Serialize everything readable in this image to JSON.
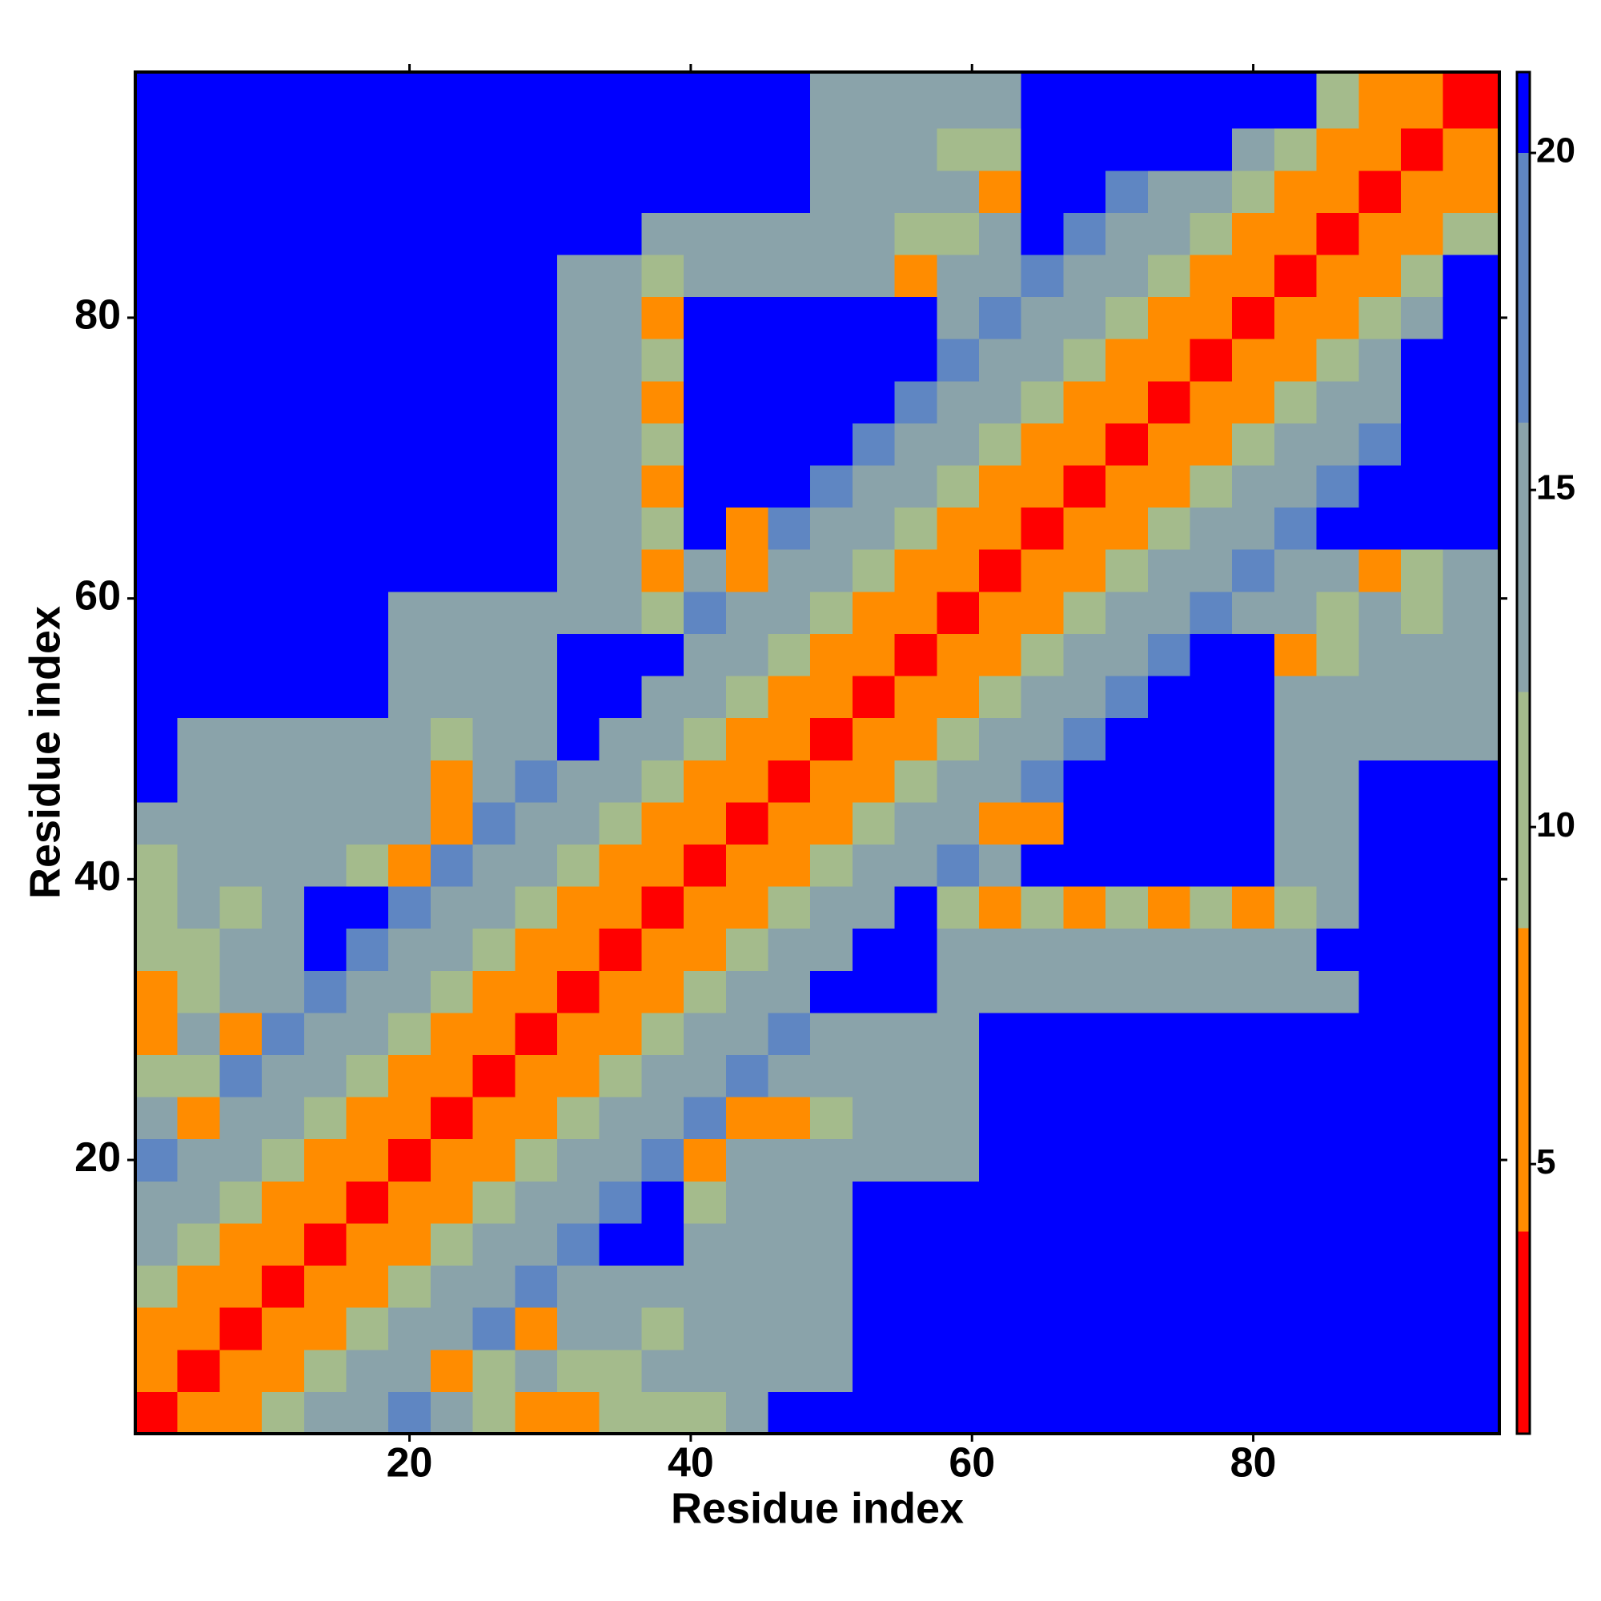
{
  "chart_data": {
    "type": "heatmap",
    "xlabel": "Residue index",
    "ylabel": "Residue index",
    "xlim": [
      0.5,
      97.5
    ],
    "ylim": [
      0.5,
      97.5
    ],
    "xticks": [
      20,
      40,
      60,
      80
    ],
    "yticks": [
      20,
      40,
      60,
      80
    ],
    "xbins": [
      0.5,
      3.5,
      6.5,
      9.5,
      12.5,
      15.5,
      18.5,
      21.5,
      24.5,
      27.5,
      30.5,
      33.5,
      36.5,
      39.5,
      42.5,
      45.5,
      48.5,
      51.5,
      54.5,
      57.5,
      60.5,
      63.5,
      66.5,
      69.5,
      72.5,
      75.5,
      78.5,
      81.5,
      84.5,
      87.5,
      90.5,
      93.5,
      97.5
    ],
    "ybins": [
      0.5,
      3.5,
      6.5,
      9.5,
      12.5,
      15.5,
      18.5,
      21.5,
      24.5,
      27.5,
      30.5,
      33.5,
      36.5,
      39.5,
      42.5,
      45.5,
      48.5,
      51.5,
      54.5,
      57.5,
      60.5,
      63.5,
      66.5,
      69.5,
      72.5,
      75.5,
      78.5,
      81.5,
      84.5,
      87.5,
      90.5,
      93.5,
      97.5
    ],
    "zlim": [
      1,
      21.2
    ],
    "zticks": [
      5,
      10,
      15,
      20
    ],
    "color_bounds": [
      4,
      8.5,
      12,
      16,
      20
    ],
    "colors": [
      "#ff0000",
      "#ff8c00",
      "#a4bb8c",
      "#8aa3aa",
      "#5f86c2",
      "#0000ff"
    ],
    "z": [
      [
        2,
        5,
        8,
        10,
        12,
        14,
        16,
        15,
        11,
        7,
        7,
        11,
        9,
        11,
        15,
        22,
        22,
        22,
        22,
        22,
        22,
        22,
        22,
        22,
        22,
        22,
        22,
        22,
        22,
        22,
        22,
        22
      ],
      [
        5,
        2,
        5,
        8,
        10,
        12,
        14,
        7,
        9,
        15,
        9,
        11,
        15,
        15,
        15,
        15,
        15,
        22,
        22,
        22,
        22,
        22,
        22,
        22,
        22,
        22,
        22,
        22,
        22,
        22,
        22,
        22
      ],
      [
        8,
        5,
        2,
        5,
        8,
        10,
        12,
        14,
        16,
        7,
        15,
        15,
        11,
        15,
        15,
        15,
        15,
        22,
        22,
        22,
        22,
        22,
        22,
        22,
        22,
        22,
        22,
        22,
        22,
        22,
        22,
        22
      ],
      [
        10,
        8,
        5,
        2,
        5,
        8,
        10,
        12,
        14,
        16,
        15,
        15,
        15,
        15,
        15,
        15,
        15,
        22,
        22,
        22,
        22,
        22,
        22,
        22,
        22,
        22,
        22,
        22,
        22,
        22,
        22,
        22
      ],
      [
        12,
        10,
        8,
        5,
        2,
        5,
        8,
        10,
        12,
        14,
        16,
        22,
        22,
        15,
        15,
        15,
        15,
        22,
        22,
        22,
        22,
        22,
        22,
        22,
        22,
        22,
        22,
        22,
        22,
        22,
        22,
        22
      ],
      [
        14,
        12,
        10,
        8,
        5,
        2,
        5,
        8,
        10,
        12,
        14,
        16,
        22,
        11,
        15,
        15,
        15,
        22,
        22,
        22,
        22,
        22,
        22,
        22,
        22,
        22,
        22,
        22,
        22,
        22,
        22,
        22
      ],
      [
        16,
        14,
        12,
        10,
        8,
        5,
        2,
        5,
        8,
        10,
        12,
        14,
        16,
        7,
        15,
        15,
        15,
        15,
        15,
        15,
        22,
        22,
        22,
        22,
        22,
        22,
        22,
        22,
        22,
        22,
        22,
        22
      ],
      [
        15,
        7,
        14,
        12,
        10,
        8,
        5,
        2,
        5,
        8,
        10,
        12,
        14,
        16,
        7,
        7,
        11,
        15,
        15,
        15,
        22,
        22,
        22,
        22,
        22,
        22,
        22,
        22,
        22,
        22,
        22,
        22
      ],
      [
        11,
        9,
        16,
        14,
        12,
        10,
        8,
        5,
        2,
        5,
        8,
        10,
        12,
        14,
        16,
        15,
        15,
        15,
        15,
        15,
        22,
        22,
        22,
        22,
        22,
        22,
        22,
        22,
        22,
        22,
        22,
        22
      ],
      [
        7,
        15,
        7,
        16,
        14,
        12,
        10,
        8,
        5,
        2,
        5,
        8,
        10,
        12,
        14,
        16,
        15,
        15,
        15,
        15,
        22,
        22,
        22,
        22,
        22,
        22,
        22,
        22,
        22,
        22,
        22,
        22
      ],
      [
        7,
        9,
        15,
        15,
        16,
        14,
        12,
        10,
        8,
        5,
        2,
        5,
        8,
        10,
        12,
        14,
        22,
        22,
        22,
        15,
        15,
        15,
        15,
        15,
        15,
        15,
        15,
        15,
        15,
        22,
        22,
        22
      ],
      [
        11,
        11,
        15,
        15,
        22,
        16,
        14,
        12,
        10,
        8,
        5,
        2,
        5,
        8,
        10,
        12,
        14,
        22,
        22,
        15,
        15,
        15,
        15,
        15,
        15,
        15,
        15,
        15,
        22,
        22,
        22,
        22
      ],
      [
        9,
        15,
        11,
        15,
        22,
        22,
        16,
        14,
        12,
        10,
        8,
        5,
        2,
        5,
        8,
        10,
        12,
        14,
        22,
        11,
        7,
        11,
        7,
        11,
        7,
        11,
        7,
        9,
        15,
        22,
        22,
        22
      ],
      [
        11,
        15,
        15,
        15,
        15,
        11,
        7,
        16,
        14,
        12,
        10,
        8,
        5,
        2,
        5,
        8,
        10,
        12,
        14,
        16,
        15,
        22,
        22,
        22,
        22,
        22,
        22,
        15,
        15,
        22,
        22,
        22
      ],
      [
        15,
        15,
        15,
        15,
        15,
        15,
        15,
        7,
        16,
        14,
        12,
        10,
        8,
        5,
        2,
        5,
        8,
        10,
        12,
        14,
        7,
        7,
        22,
        22,
        22,
        22,
        22,
        15,
        15,
        22,
        22,
        22
      ],
      [
        22,
        15,
        15,
        15,
        15,
        15,
        15,
        7,
        15,
        16,
        14,
        12,
        10,
        8,
        5,
        2,
        5,
        8,
        10,
        12,
        14,
        16,
        22,
        22,
        22,
        22,
        22,
        15,
        15,
        22,
        22,
        22
      ],
      [
        22,
        15,
        15,
        15,
        15,
        15,
        15,
        11,
        15,
        15,
        22,
        14,
        12,
        10,
        8,
        5,
        2,
        5,
        8,
        10,
        12,
        14,
        16,
        22,
        22,
        22,
        22,
        15,
        15,
        15,
        15,
        15
      ],
      [
        22,
        22,
        22,
        22,
        22,
        22,
        15,
        15,
        15,
        15,
        22,
        22,
        14,
        12,
        10,
        8,
        5,
        2,
        5,
        8,
        10,
        12,
        14,
        16,
        22,
        22,
        22,
        15,
        15,
        15,
        15,
        15
      ],
      [
        22,
        22,
        22,
        22,
        22,
        22,
        15,
        15,
        15,
        15,
        22,
        22,
        22,
        14,
        12,
        10,
        8,
        5,
        2,
        5,
        8,
        10,
        12,
        14,
        16,
        22,
        22,
        7,
        11,
        15,
        15,
        15
      ],
      [
        22,
        22,
        22,
        22,
        22,
        22,
        15,
        15,
        15,
        15,
        15,
        15,
        11,
        16,
        14,
        12,
        10,
        8,
        5,
        2,
        5,
        8,
        10,
        12,
        14,
        16,
        15,
        15,
        11,
        15,
        9,
        15
      ],
      [
        22,
        22,
        22,
        22,
        22,
        22,
        22,
        22,
        22,
        22,
        15,
        15,
        7,
        15,
        7,
        14,
        12,
        10,
        8,
        5,
        2,
        5,
        8,
        10,
        12,
        14,
        16,
        15,
        15,
        7,
        11,
        15
      ],
      [
        22,
        22,
        22,
        22,
        22,
        22,
        22,
        22,
        22,
        22,
        15,
        15,
        11,
        22,
        7,
        16,
        14,
        12,
        10,
        8,
        5,
        2,
        5,
        8,
        10,
        12,
        14,
        16,
        22,
        22,
        22,
        22
      ],
      [
        22,
        22,
        22,
        22,
        22,
        22,
        22,
        22,
        22,
        22,
        15,
        15,
        7,
        22,
        22,
        22,
        16,
        14,
        12,
        10,
        8,
        5,
        2,
        5,
        8,
        10,
        12,
        14,
        16,
        22,
        22,
        22
      ],
      [
        22,
        22,
        22,
        22,
        22,
        22,
        22,
        22,
        22,
        22,
        15,
        15,
        11,
        22,
        22,
        22,
        22,
        16,
        14,
        12,
        10,
        8,
        5,
        2,
        5,
        8,
        10,
        12,
        14,
        16,
        22,
        22
      ],
      [
        22,
        22,
        22,
        22,
        22,
        22,
        22,
        22,
        22,
        22,
        15,
        15,
        7,
        22,
        22,
        22,
        22,
        22,
        16,
        14,
        12,
        10,
        8,
        5,
        2,
        5,
        8,
        10,
        12,
        14,
        22,
        22
      ],
      [
        22,
        22,
        22,
        22,
        22,
        22,
        22,
        22,
        22,
        22,
        15,
        15,
        11,
        22,
        22,
        22,
        22,
        22,
        22,
        16,
        14,
        12,
        10,
        8,
        5,
        2,
        5,
        8,
        10,
        12,
        22,
        22
      ],
      [
        22,
        22,
        22,
        22,
        22,
        22,
        22,
        22,
        22,
        22,
        15,
        15,
        7,
        22,
        22,
        22,
        22,
        22,
        22,
        15,
        16,
        14,
        12,
        10,
        8,
        5,
        2,
        5,
        8,
        10,
        12,
        22
      ],
      [
        22,
        22,
        22,
        22,
        22,
        22,
        22,
        22,
        22,
        22,
        15,
        15,
        9,
        15,
        15,
        15,
        15,
        15,
        7,
        15,
        15,
        16,
        14,
        12,
        10,
        8,
        5,
        2,
        5,
        8,
        10,
        22
      ],
      [
        22,
        22,
        22,
        22,
        22,
        22,
        22,
        22,
        22,
        22,
        22,
        22,
        15,
        15,
        15,
        15,
        15,
        15,
        11,
        11,
        15,
        22,
        16,
        14,
        12,
        10,
        8,
        5,
        2,
        5,
        8,
        10
      ],
      [
        22,
        22,
        22,
        22,
        22,
        22,
        22,
        22,
        22,
        22,
        22,
        22,
        22,
        22,
        22,
        22,
        15,
        15,
        15,
        15,
        7,
        22,
        22,
        16,
        14,
        12,
        10,
        8,
        5,
        2,
        5,
        8
      ],
      [
        22,
        22,
        22,
        22,
        22,
        22,
        22,
        22,
        22,
        22,
        22,
        22,
        22,
        22,
        22,
        22,
        15,
        15,
        15,
        9,
        11,
        22,
        22,
        22,
        22,
        22,
        12,
        10,
        8,
        5,
        2,
        5
      ],
      [
        22,
        22,
        22,
        22,
        22,
        22,
        22,
        22,
        22,
        22,
        22,
        22,
        22,
        22,
        22,
        22,
        15,
        15,
        15,
        15,
        15,
        22,
        22,
        22,
        22,
        22,
        22,
        22,
        10,
        8,
        5,
        2
      ]
    ]
  }
}
